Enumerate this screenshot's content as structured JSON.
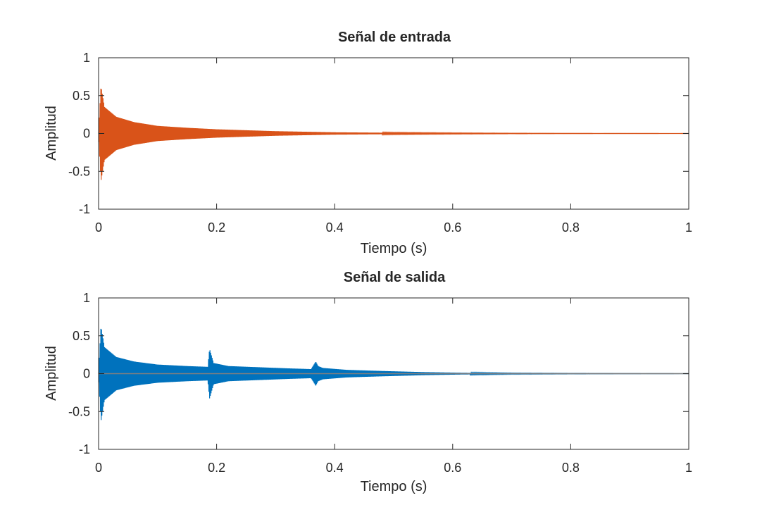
{
  "chart_data": [
    {
      "type": "line",
      "title": "Señal de entrada",
      "xlabel": "Tiempo (s)",
      "ylabel": "Amplitud",
      "xlim": [
        0,
        1
      ],
      "ylim": [
        -1,
        1
      ],
      "xticks": [
        "0",
        "0.2",
        "0.4",
        "0.6",
        "0.8",
        "1"
      ],
      "yticks": [
        "1",
        "0.5",
        "0",
        "-0.5",
        "-1"
      ],
      "grid": false,
      "series": [
        {
          "color": "#D95319",
          "envelope": {
            "t": [
              0,
              0.004,
              0.01,
              0.03,
              0.06,
              0.1,
              0.15,
              0.2,
              0.3,
              0.4,
              0.5,
              0.6,
              0.7,
              0.8,
              1.0
            ],
            "peak": [
              0.02,
              0.63,
              0.35,
              0.22,
              0.15,
              0.1,
              0.075,
              0.055,
              0.03,
              0.015,
              0.008,
              0.005,
              0.003,
              0.002,
              0.001
            ]
          }
        }
      ]
    },
    {
      "type": "line",
      "title": "Señal de salida",
      "xlabel": "Tiempo (s)",
      "ylabel": "Amplitud",
      "xlim": [
        0,
        1
      ],
      "ylim": [
        -1,
        1
      ],
      "xticks": [
        "0",
        "0.2",
        "0.4",
        "0.6",
        "0.8",
        "1"
      ],
      "yticks": [
        "1",
        "0.5",
        "0",
        "-0.5",
        "-1"
      ],
      "grid": false,
      "series": [
        {
          "color": "#0072BD",
          "envelope": {
            "t": [
              0,
              0.004,
              0.01,
              0.03,
              0.06,
              0.1,
              0.15,
              0.185,
              0.188,
              0.195,
              0.22,
              0.27,
              0.32,
              0.36,
              0.368,
              0.372,
              0.38,
              0.42,
              0.48,
              0.55,
              0.62,
              0.7,
              0.8,
              1.0
            ],
            "peak": [
              0.02,
              0.63,
              0.35,
              0.22,
              0.16,
              0.12,
              0.1,
              0.09,
              0.33,
              0.14,
              0.1,
              0.085,
              0.07,
              0.06,
              0.16,
              0.1,
              0.075,
              0.05,
              0.035,
              0.02,
              0.01,
              0.005,
              0.003,
              0.001
            ]
          }
        },
        {
          "color": "#7F7F7F",
          "values": "flat line at 0"
        }
      ]
    }
  ]
}
